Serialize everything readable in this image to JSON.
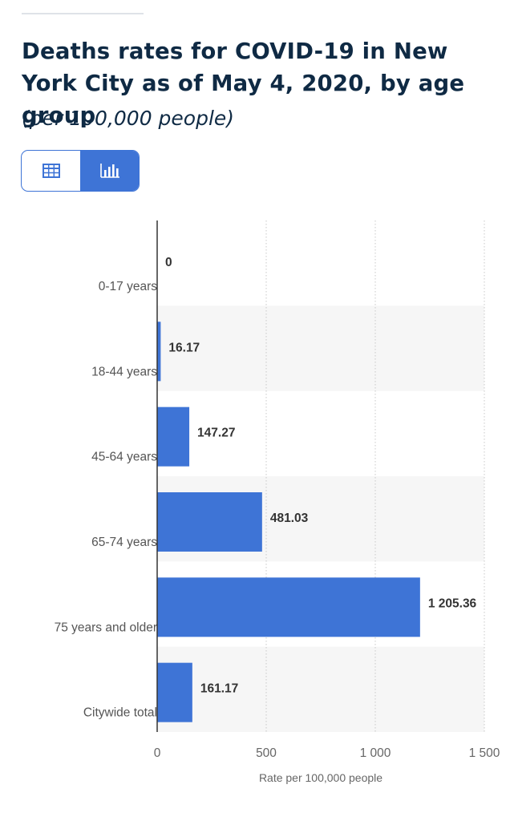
{
  "title": "Deaths rates for COVID-19 in New York City as of May 4, 2020, by age group",
  "subtitle": "(per 100,000 people)",
  "view_toggle": {
    "options": [
      {
        "icon": "table-icon",
        "active": false
      },
      {
        "icon": "bar-chart-icon",
        "active": true
      }
    ]
  },
  "colors": {
    "bar": "#3e74d6",
    "accent": "#3e74d6",
    "title": "#0f2a44",
    "band": "#f6f6f6"
  },
  "chart_data": {
    "type": "bar",
    "orientation": "horizontal",
    "categories": [
      "0-17 years",
      "18-44 years",
      "45-64 years",
      "65-74 years",
      "75 years and older",
      "Citywide total"
    ],
    "values": [
      0,
      16.17,
      147.27,
      481.03,
      1205.36,
      161.17
    ],
    "value_labels": [
      "0",
      "16.17",
      "147.27",
      "481.03",
      "1 205.36",
      "161.17"
    ],
    "xlabel": "Rate per 100,000 people",
    "ylabel": "",
    "xlim": [
      0,
      1500
    ],
    "ticks": [
      0,
      500,
      1000,
      1500
    ],
    "tick_labels": [
      "0",
      "500",
      "1 000",
      "1 500"
    ],
    "grid": "vertical dotted",
    "legend": "none"
  }
}
